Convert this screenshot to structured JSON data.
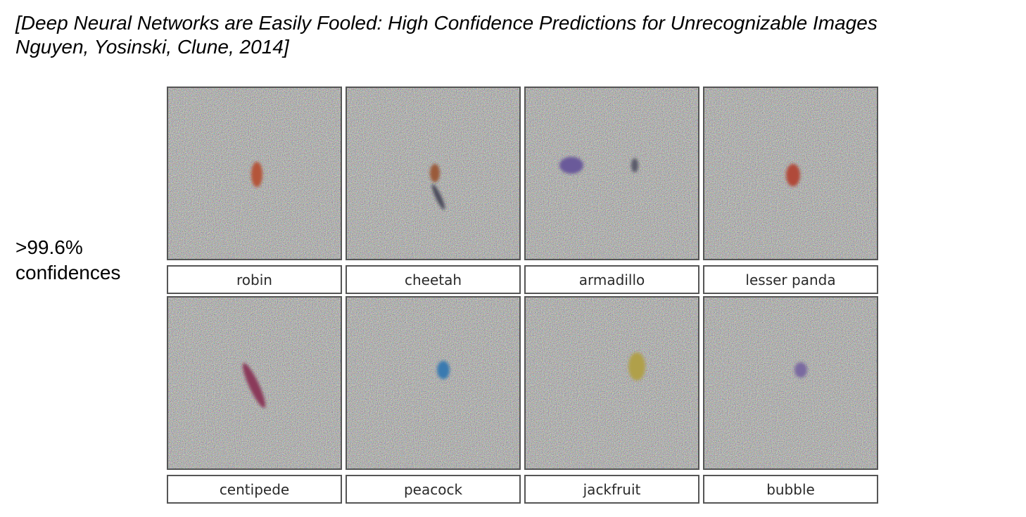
{
  "citation": {
    "line1": "[Deep Neural Networks are Easily Fooled: High Confidence Predictions for Unrecognizable Images",
    "line2": "Nguyen, Yosinski, Clune, 2014]"
  },
  "side_label": {
    "line1": ">99.6%",
    "line2": "confidences"
  },
  "figure": {
    "images": [
      {
        "label": "robin",
        "blob_color": "#b4553a"
      },
      {
        "label": "cheetah",
        "blob_color": "#9a5a3a"
      },
      {
        "label": "armadillo",
        "blob_color": "#6a5a9a"
      },
      {
        "label": "lesser panda",
        "blob_color": "#b04a3a"
      },
      {
        "label": "centipede",
        "blob_color": "#8a3a5a"
      },
      {
        "label": "peacock",
        "blob_color": "#3a7ab0"
      },
      {
        "label": "jackfruit",
        "blob_color": "#b0a04a"
      },
      {
        "label": "bubble",
        "blob_color": "#7a6aa0"
      }
    ]
  }
}
